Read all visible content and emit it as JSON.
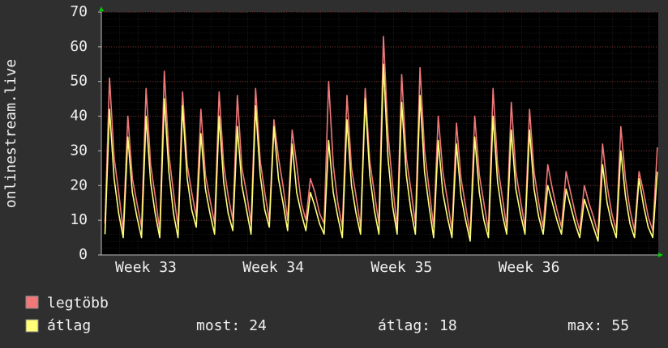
{
  "chart_data": {
    "type": "line",
    "ylabel": "onlinestream.live",
    "xlim": [
      0,
      30.5
    ],
    "xticks": [
      {
        "value": 2.44,
        "label": "Week 33"
      },
      {
        "value": 9.42,
        "label": "Week 34"
      },
      {
        "value": 16.44,
        "label": "Week 35"
      },
      {
        "value": 23.42,
        "label": "Week 36"
      }
    ],
    "ylim": [
      0,
      70
    ],
    "yticks": [
      0,
      10,
      20,
      30,
      40,
      50,
      60,
      70
    ],
    "grid": true,
    "x": [
      0.2,
      0.45,
      0.7,
      0.95,
      1.2,
      1.45,
      1.7,
      1.95,
      2.2,
      2.45,
      2.7,
      2.95,
      3.2,
      3.45,
      3.7,
      3.95,
      4.2,
      4.45,
      4.7,
      4.95,
      5.2,
      5.45,
      5.7,
      5.95,
      6.2,
      6.45,
      6.7,
      6.95,
      7.2,
      7.45,
      7.7,
      7.95,
      8.2,
      8.45,
      8.7,
      8.95,
      9.2,
      9.45,
      9.7,
      9.95,
      10.2,
      10.45,
      10.7,
      10.95,
      11.2,
      11.45,
      11.7,
      11.95,
      12.2,
      12.45,
      12.7,
      12.95,
      13.2,
      13.45,
      13.7,
      13.95,
      14.2,
      14.45,
      14.7,
      14.95,
      15.2,
      15.45,
      15.7,
      15.95,
      16.2,
      16.45,
      16.7,
      16.95,
      17.2,
      17.45,
      17.7,
      17.95,
      18.2,
      18.45,
      18.7,
      18.95,
      19.2,
      19.45,
      19.7,
      19.95,
      20.2,
      20.45,
      20.7,
      20.95,
      21.2,
      21.45,
      21.7,
      21.95,
      22.2,
      22.45,
      22.7,
      22.95,
      23.2,
      23.45,
      23.7,
      23.95,
      24.2,
      24.45,
      24.7,
      24.95,
      25.2,
      25.45,
      25.7,
      25.95,
      26.2,
      26.45,
      26.7,
      26.95,
      27.2,
      27.45,
      27.7,
      27.95,
      28.2,
      28.45,
      28.7,
      28.95,
      29.2,
      29.45,
      29.7,
      29.95,
      30.2,
      30.45
    ],
    "series": [
      {
        "name": "legtöbb",
        "color": "#f07878",
        "values": [
          9,
          51,
          28,
          18,
          7,
          40,
          22,
          15,
          8,
          48,
          26,
          17,
          7,
          53,
          29,
          18,
          8,
          47,
          26,
          18,
          11,
          42,
          23,
          16,
          9,
          47,
          26,
          17,
          10,
          46,
          25,
          18,
          9,
          48,
          27,
          18,
          10,
          39,
          28,
          20,
          10,
          36,
          26,
          15,
          10,
          22,
          18,
          12,
          9,
          50,
          26,
          15,
          8,
          46,
          25,
          17,
          8,
          48,
          27,
          18,
          9,
          63,
          35,
          20,
          8,
          52,
          28,
          19,
          9,
          54,
          30,
          19,
          8,
          40,
          24,
          16,
          7,
          38,
          22,
          14,
          6,
          40,
          23,
          15,
          7,
          48,
          26,
          17,
          8,
          44,
          24,
          16,
          8,
          42,
          24,
          15,
          8,
          26,
          19,
          13,
          8,
          24,
          18,
          12,
          7,
          20,
          15,
          11,
          6,
          32,
          20,
          12,
          7,
          37,
          22,
          13,
          7,
          24,
          18,
          11,
          7,
          31
        ]
      },
      {
        "name": "átlag",
        "color": "#ffff78",
        "values": [
          6,
          42,
          22,
          12,
          5,
          34,
          18,
          11,
          5,
          40,
          21,
          12,
          5,
          45,
          24,
          12,
          5,
          43,
          22,
          13,
          8,
          35,
          19,
          12,
          6,
          40,
          21,
          12,
          7,
          37,
          20,
          13,
          6,
          43,
          23,
          13,
          8,
          37,
          22,
          15,
          7,
          32,
          18,
          12,
          7,
          18,
          14,
          9,
          6,
          33,
          18,
          11,
          5,
          39,
          20,
          12,
          6,
          45,
          23,
          13,
          6,
          55,
          28,
          14,
          6,
          44,
          23,
          13,
          6,
          46,
          24,
          14,
          5,
          33,
          18,
          11,
          5,
          32,
          17,
          10,
          4,
          34,
          18,
          10,
          5,
          40,
          21,
          12,
          6,
          36,
          19,
          12,
          6,
          36,
          19,
          11,
          6,
          20,
          15,
          10,
          6,
          19,
          14,
          9,
          5,
          16,
          12,
          8,
          4,
          26,
          15,
          9,
          5,
          30,
          17,
          9,
          5,
          22,
          14,
          8,
          5,
          24
        ]
      }
    ],
    "stats": [
      {
        "label": "most:",
        "value": 24
      },
      {
        "label": "átlag:",
        "value": 18
      },
      {
        "label": "max:",
        "value": 55
      }
    ]
  }
}
